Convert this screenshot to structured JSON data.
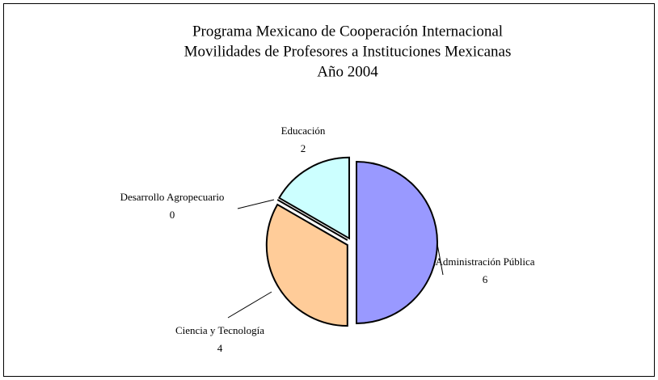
{
  "chart_data": {
    "type": "pie",
    "title": [
      "Programa Mexicano de Cooperación Internacional",
      "Movilidades de Profesores a Instituciones Mexicanas",
      "Año 2004"
    ],
    "categories": [
      "Administración Pública",
      "Ciencia y Tecnología",
      "Desarrollo Agropecuario",
      "Educación"
    ],
    "values": [
      6,
      4,
      0,
      2
    ],
    "colors": [
      "#9999ff",
      "#ffcc99",
      "#ffffcc",
      "#ccffff"
    ]
  }
}
